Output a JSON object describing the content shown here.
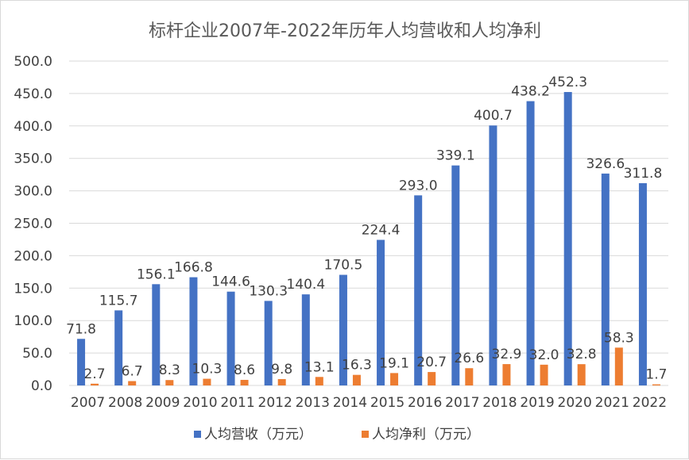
{
  "chart_data": {
    "type": "bar",
    "title": "标杆企业2007年-2022年历年人均营收和人均净利",
    "categories": [
      "2007",
      "2008",
      "2009",
      "2010",
      "2011",
      "2012",
      "2013",
      "2014",
      "2015",
      "2016",
      "2017",
      "2018",
      "2019",
      "2020",
      "2021",
      "2022"
    ],
    "series": [
      {
        "name": "人均营收（万元）",
        "color": "#4472C4",
        "values": [
          71.8,
          115.7,
          156.1,
          166.8,
          144.6,
          130.3,
          140.4,
          170.5,
          224.4,
          293.0,
          339.1,
          400.7,
          438.2,
          452.3,
          326.6,
          311.8
        ],
        "labels": [
          "71.8",
          "115.7",
          "156.1",
          "166.8",
          "144.6",
          "130.3",
          "140.4",
          "170.5",
          "224.4",
          "293.0",
          "339.1",
          "400.7",
          "438.2",
          "452.3",
          "326.6",
          "311.8"
        ]
      },
      {
        "name": "人均净利（万元）",
        "color": "#ED7D31",
        "values": [
          2.7,
          6.7,
          8.3,
          10.3,
          8.6,
          9.8,
          13.1,
          16.3,
          19.1,
          20.7,
          26.6,
          32.9,
          32.0,
          32.8,
          58.3,
          1.7
        ],
        "labels": [
          "2.7",
          "6.7",
          "8.3",
          "10.3",
          "8.6",
          "9.8",
          "13.1",
          "16.3",
          "19.1",
          "20.7",
          "26.6",
          "32.9",
          "32.0",
          "32.8",
          "58.3",
          "1.7"
        ]
      }
    ],
    "ylim": [
      0,
      500
    ],
    "yticks": [
      "0.0",
      "50.0",
      "100.0",
      "150.0",
      "200.0",
      "250.0",
      "300.0",
      "350.0",
      "400.0",
      "450.0",
      "500.0"
    ],
    "grid": true,
    "legend_position": "bottom"
  }
}
